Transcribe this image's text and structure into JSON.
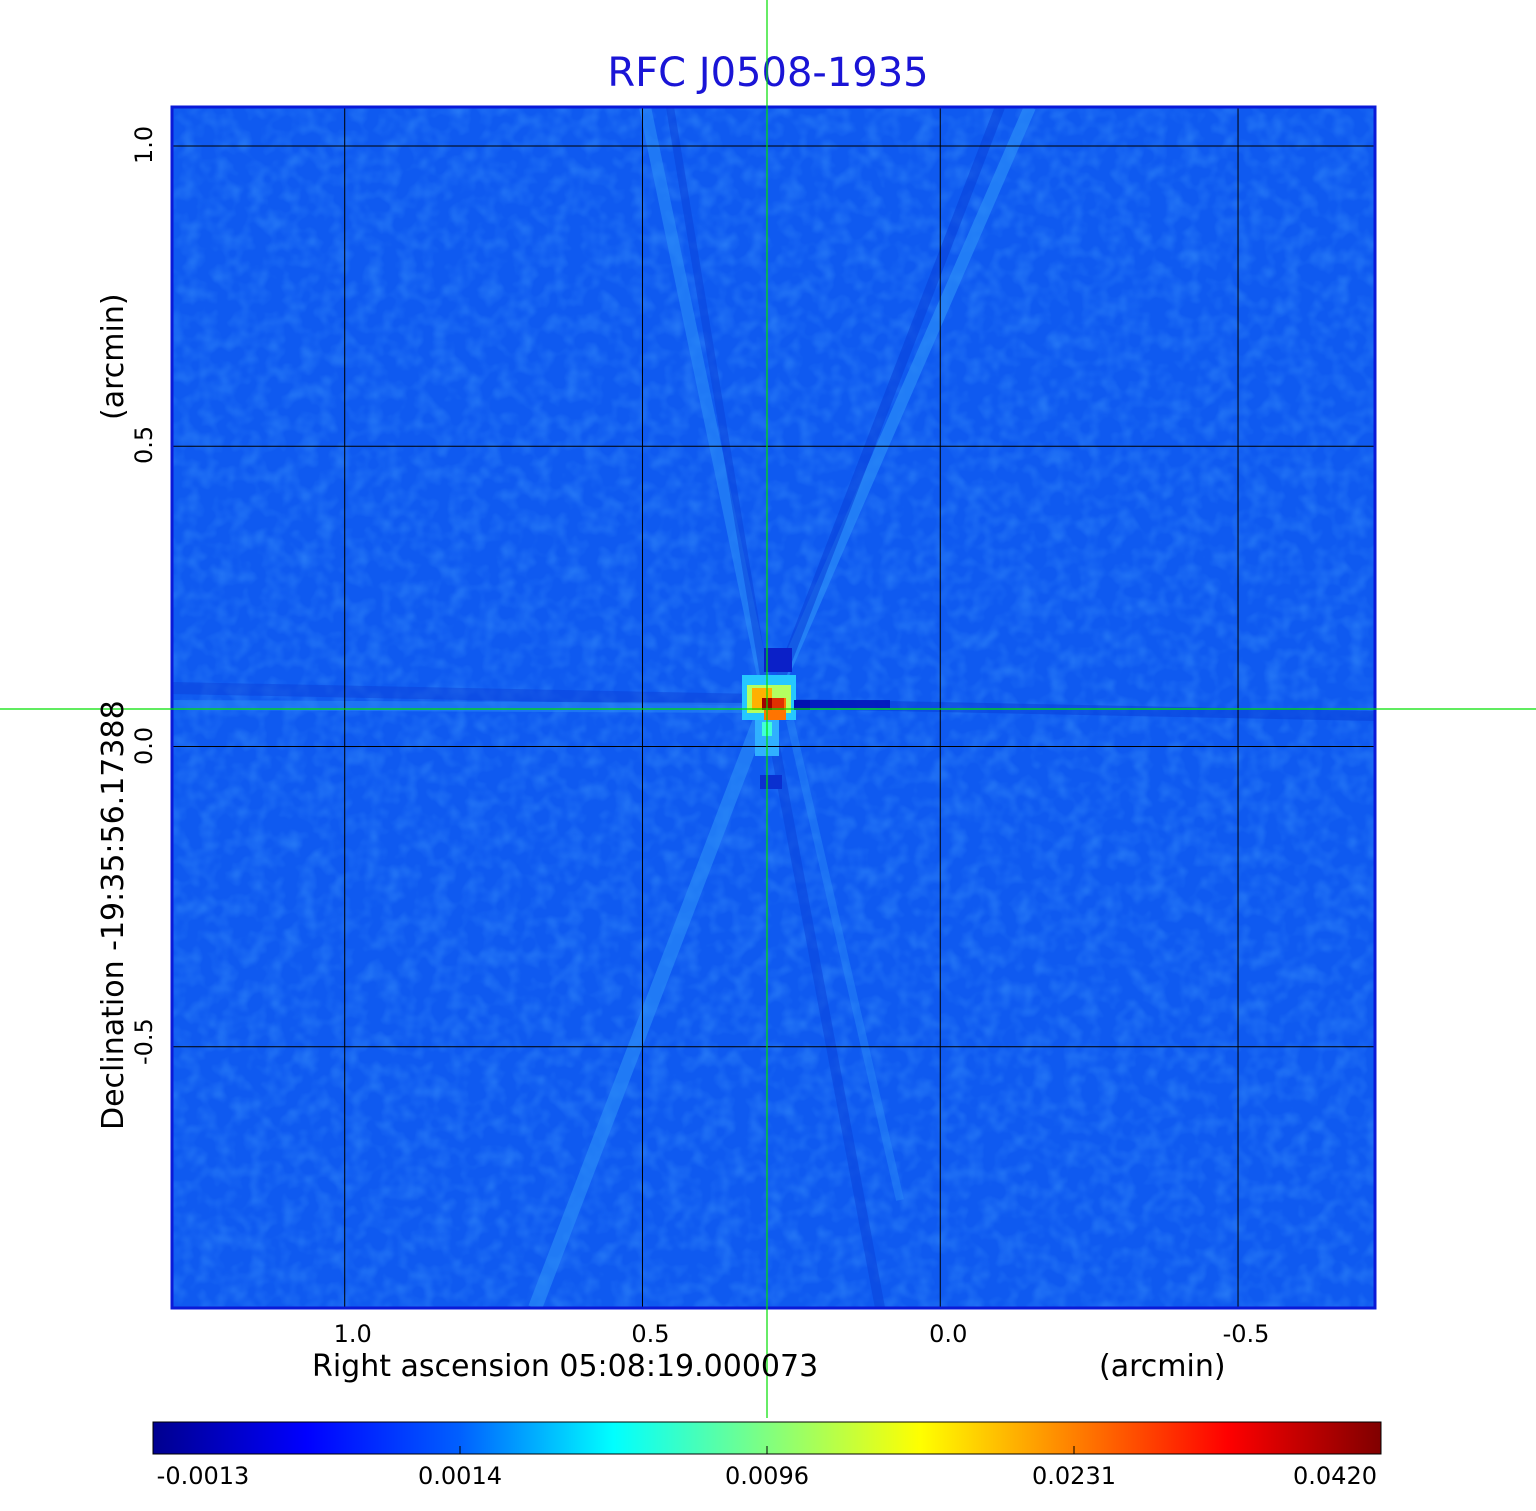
{
  "title": "RFC J0508-1935",
  "x_axis": {
    "label": "Right ascension  05:08:19.000073",
    "unit": "(arcmin)",
    "ticks": [
      "1.0",
      "0.5",
      "0.0",
      "-0.5"
    ],
    "tick_values": [
      1.0,
      0.5,
      0.0,
      -0.5
    ],
    "range": [
      1.29,
      -0.73
    ]
  },
  "y_axis": {
    "label": "Declination  -19:35:56.17388",
    "unit": "(arcmin)",
    "ticks": [
      "1.0",
      "0.5",
      "0.0",
      "-0.5"
    ],
    "tick_values": [
      1.0,
      0.5,
      0.0,
      -0.5
    ],
    "range": [
      -0.935,
      1.065
    ]
  },
  "colorbar": {
    "colormap": "jet",
    "labels": [
      "-0.0013",
      "0.0014",
      "0.0096",
      "0.0231",
      "0.0420"
    ]
  },
  "image": {
    "peak_value": 0.042,
    "background_value": 0.0
  },
  "colors": {
    "title": "#1a14d6",
    "grid": "#000000",
    "crosshair": "#00e000",
    "frame": "#0a1ad8"
  }
}
